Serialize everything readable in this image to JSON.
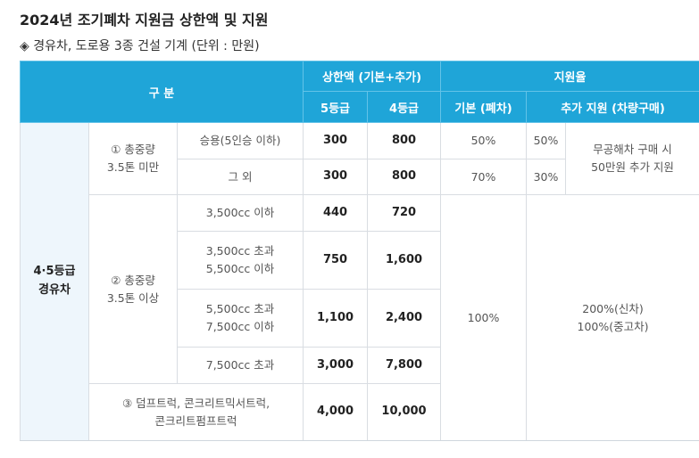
{
  "title": "2024년 조기폐차 지원금 상한액 및 지원",
  "subtitle": "◈ 경유차, 도로용 3종 건설 기계 (단위 : 만원)",
  "header": {
    "category": "구 분",
    "limit": "상한액 (기본+추가)",
    "grade5": "5등급",
    "grade4": "4등급",
    "rate": "지원율",
    "base": "기본 (폐차)",
    "extra": "추가 지원 (차량구매)"
  },
  "body": {
    "vehicle_class": "4·5등급\n경유차",
    "group1": "① 총중량\n3.5톤 미만",
    "group2": "② 총중량\n3.5톤 이상",
    "group3": "③ 덤프트럭, 콘크리트믹서트럭,\n콘크리트펌프트럭",
    "rows": [
      {
        "sub": "승용(5인승 이하)",
        "g5": "300",
        "g4": "800",
        "base": "50%",
        "extra": "50%"
      },
      {
        "sub": "그 외",
        "g5": "300",
        "g4": "800",
        "base": "70%",
        "extra": "30%"
      },
      {
        "sub": "3,500cc 이하",
        "g5": "440",
        "g4": "720"
      },
      {
        "sub": "3,500cc 초과\n5,500cc 이하",
        "g5": "750",
        "g4": "1,600"
      },
      {
        "sub": "5,500cc 초과\n7,500cc 이하",
        "g5": "1,100",
        "g4": "2,400"
      },
      {
        "sub": "7,500cc 초과",
        "g5": "3,000",
        "g4": "7,800"
      },
      {
        "g5": "4,000",
        "g4": "10,000"
      }
    ],
    "extra_note": "무공해차 구매 시\n50만원 추가 지원",
    "base_merged": "100%",
    "extra_merged": "200%(신차)\n100%(중고차)"
  }
}
